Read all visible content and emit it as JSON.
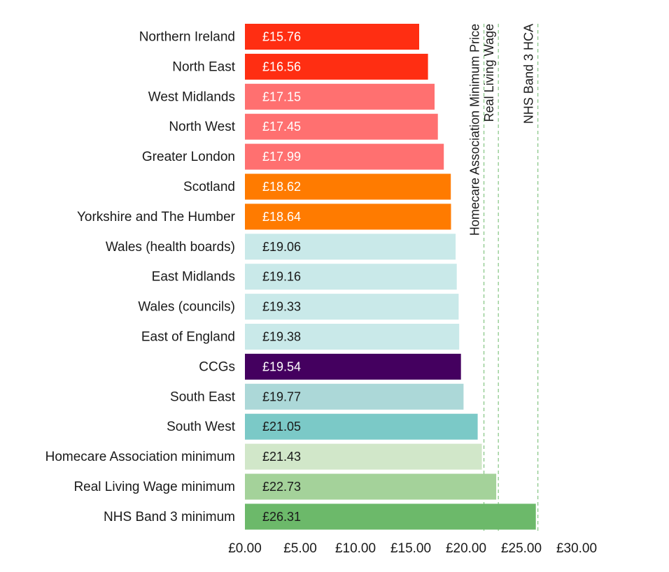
{
  "chart_data": {
    "type": "bar",
    "orientation": "horizontal",
    "title": "",
    "xlabel": "",
    "ylabel": "",
    "xlim": [
      0,
      30
    ],
    "grid": false,
    "legend": "none",
    "categories": [
      "Northern Ireland",
      "North East",
      "West Midlands",
      "North West",
      "Greater London",
      "Scotland",
      "Yorkshire and The Humber",
      "Wales (health boards)",
      "East Midlands",
      "Wales (councils)",
      "East of England",
      "CCGs",
      "South East",
      "South West",
      "Homecare Association minimum",
      "Real Living Wage minimum",
      "NHS Band 3 minimum"
    ],
    "values": [
      15.76,
      16.56,
      17.15,
      17.45,
      17.99,
      18.62,
      18.64,
      19.06,
      19.16,
      19.33,
      19.38,
      19.54,
      19.77,
      21.05,
      21.43,
      22.73,
      26.31
    ],
    "value_labels": [
      "£15.76",
      "£16.56",
      "£17.15",
      "£17.45",
      "£17.99",
      "£18.62",
      "£18.64",
      "£19.06",
      "£19.16",
      "£19.33",
      "£19.38",
      "£19.54",
      "£19.77",
      "£21.05",
      "£21.43",
      "£22.73",
      "£26.31"
    ],
    "bar_colors": [
      "#ff2e12",
      "#ff2e12",
      "#ff7070",
      "#ff7070",
      "#ff7070",
      "#ff7b00",
      "#ff7b00",
      "#c9e9e9",
      "#c9e9e9",
      "#c9e9e9",
      "#c9e9e9",
      "#44005f",
      "#acd8d8",
      "#7bc9c7",
      "#d1e7c9",
      "#a4d29a",
      "#6cb96a"
    ],
    "value_label_colors": [
      "#ffffff",
      "#ffffff",
      "#ffffff",
      "#ffffff",
      "#ffffff",
      "#ffffff",
      "#ffffff",
      "#1a1a1a",
      "#1a1a1a",
      "#1a1a1a",
      "#1a1a1a",
      "#ffffff",
      "#1a1a1a",
      "#1a1a1a",
      "#1a1a1a",
      "#1a1a1a",
      "#1a1a1a"
    ],
    "x_ticks": [
      0,
      5,
      10,
      15,
      20,
      25,
      30
    ],
    "x_tick_labels": [
      "£0.00",
      "£5.00",
      "£10.00",
      "£15.00",
      "£20.00",
      "£25.00",
      "£30.00"
    ],
    "reference_lines": [
      {
        "label": "Homecare Association Minimum Price",
        "value": 21.43
      },
      {
        "label": "Real Living Wage",
        "value": 22.73
      },
      {
        "label": "NHS Band 3 HCA",
        "value": 26.31
      }
    ],
    "reference_line_color": "#6cb96a"
  }
}
